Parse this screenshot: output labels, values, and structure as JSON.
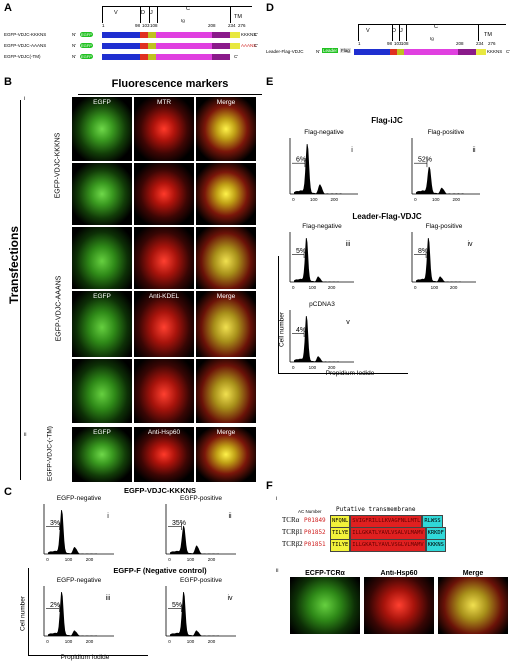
{
  "panelA": {
    "label": "A",
    "domains": [
      "V",
      "D",
      "J",
      "C",
      "TM"
    ],
    "ig": "Ig",
    "ticks": [
      "1",
      "98",
      "103",
      "108",
      "208",
      "234",
      "276"
    ],
    "constructs": [
      {
        "name": "EGFP-VDJC-KKKNS",
        "tail": "KKKNS"
      },
      {
        "name": "EGFP-VDJC-AAANS",
        "tail": "AAANS"
      },
      {
        "name": "EGFP-VDJC(-TM)",
        "tail": ""
      }
    ],
    "gfp": "EGFP",
    "nterm": "N'",
    "cterm": "C'"
  },
  "panelD": {
    "label": "D",
    "construct": "Leader-Flag-VDJC",
    "leader": "Leader",
    "flag": "Flag",
    "tail": "KKKNS"
  },
  "panelB": {
    "label": "B",
    "heading": "Fluorescence markers",
    "side": "Transfections",
    "sub_i": "i",
    "sub_ii": "ii",
    "cols1": [
      "EGFP",
      "MTR",
      "Merge"
    ],
    "cols2": [
      "EGFP",
      "Anti-KDEL",
      "Merge"
    ],
    "cols3": [
      "EGFP",
      "Anti-Hsp60",
      "Merge"
    ],
    "rowlabels": [
      "EGFP-VDJC-KKKNS",
      "EGFP-VDJC-AAANS",
      "EGFP-VDJC-(-TM)"
    ]
  },
  "panelE": {
    "label": "E",
    "title1": "Flag-iJC",
    "title2": "Leader-Flag-VDJC",
    "ylabel": "Cell number",
    "xlabel": "Propidium Iodide",
    "hists": [
      {
        "title": "Flag-negative",
        "num": "i",
        "pct": "6%"
      },
      {
        "title": "Flag-positive",
        "num": "ii",
        "pct": "52%"
      },
      {
        "title": "Flag-negative",
        "num": "iii",
        "pct": "5%"
      },
      {
        "title": "Flag-positive",
        "num": "iv",
        "pct": "8%"
      },
      {
        "title": "pCDNA3",
        "num": "v",
        "pct": "4%"
      }
    ],
    "xticks": [
      "0",
      "100",
      "200"
    ]
  },
  "panelC": {
    "label": "C",
    "title1": "EGFP-VDJC-KKKNS",
    "title2": "EGFP-F (Negative control)",
    "ylabel": "Cell number",
    "xlabel": "Propidium Iodide",
    "hists": [
      {
        "title": "EGFP-negative",
        "num": "i",
        "pct": "3%"
      },
      {
        "title": "EGFP-positive",
        "num": "ii",
        "pct": "35%"
      },
      {
        "title": "EGFP-negative",
        "num": "iii",
        "pct": "2%"
      },
      {
        "title": "EGFP-positive",
        "num": "iv",
        "pct": "5%"
      }
    ],
    "xticks": [
      "0",
      "100",
      "200"
    ]
  },
  "panelF": {
    "label": "F",
    "sub_i": "i",
    "sub_ii": "ii",
    "acnum": "AC Number",
    "putative": "Putative transmembrane",
    "rows": [
      {
        "name": "TCRα",
        "ac": "P01849",
        "a": "NFQNL",
        "b": "SVIGFRILLLKVAGFNLLMTL",
        "c": "RLWSS"
      },
      {
        "name": "TCRβ1",
        "ac": "P01852",
        "a": "TILYE",
        "b": "ILLGKATLYAVLVSALVLMAMV",
        "c": "KRKDF"
      },
      {
        "name": "TCRβ2",
        "ac": "P01851",
        "a": "TILYE",
        "b": "ILLGKATLYAVLVSGLVLMAMV",
        "c": "KKKNS"
      }
    ],
    "imgs": [
      "ECFP-TCRα",
      "Anti-Hsp60",
      "Merge"
    ]
  },
  "colors": {
    "v": "#1f2fd0",
    "d": "#e03020",
    "j": "#c0c020",
    "c": "#e040e0",
    "tm": "#e8e840",
    "gfp": "#22c222"
  }
}
